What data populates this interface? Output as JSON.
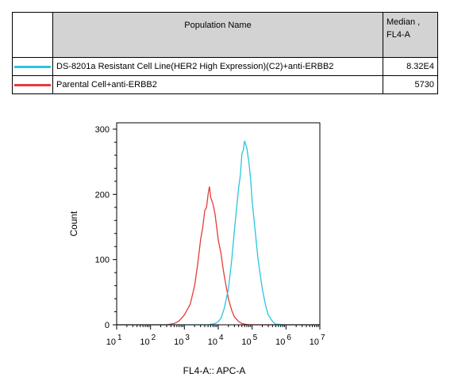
{
  "legend": {
    "header_name": "Population Name",
    "header_median_line1": "Median ,",
    "header_median_line2": "FL4-A",
    "rows": [
      {
        "name": "DS-8201a Resistant Cell Line(HER2 High Expression)(C2)+anti-ERBB2",
        "median": "8.32E4",
        "color": "#29c5e0"
      },
      {
        "name": "Parental Cell+anti-ERBB2",
        "median": "5730",
        "color": "#e53b3b"
      }
    ]
  },
  "chart_data": {
    "type": "line",
    "xlabel": "FL4-A:: APC-A",
    "ylabel": "Count",
    "xscale": "log",
    "xlim": [
      10,
      10000000
    ],
    "ylim": [
      0,
      300
    ],
    "yticks": [
      0,
      100,
      200,
      300
    ],
    "xticks": [
      {
        "base": "10",
        "exp": "1"
      },
      {
        "base": "10",
        "exp": "2"
      },
      {
        "base": "10",
        "exp": "3"
      },
      {
        "base": "10",
        "exp": "4"
      },
      {
        "base": "10",
        "exp": "5"
      },
      {
        "base": "10",
        "exp": "6"
      },
      {
        "base": "10",
        "exp": "7"
      }
    ],
    "series": [
      {
        "name": "Parental Cell+anti-ERBB2",
        "color": "#e53b3b",
        "x": [
          10,
          300,
          500,
          700,
          1000,
          1500,
          2000,
          2500,
          3000,
          3500,
          4000,
          4500,
          5000,
          5500,
          6000,
          6500,
          7000,
          8000,
          9000,
          10000,
          12000,
          14000,
          17000,
          20000,
          25000,
          30000,
          40000,
          50000,
          60000,
          80000,
          100000,
          1000000,
          10000000
        ],
        "y": [
          0,
          0,
          2,
          6,
          15,
          32,
          60,
          95,
          130,
          150,
          175,
          180,
          200,
          212,
          195,
          190,
          185,
          170,
          150,
          130,
          110,
          85,
          60,
          40,
          22,
          12,
          5,
          2,
          1,
          0,
          0,
          0,
          0
        ]
      },
      {
        "name": "DS-8201a Resistant Cell Line(HER2 High Expression)(C2)+anti-ERBB2",
        "color": "#29c5e0",
        "x": [
          10,
          5000,
          8000,
          10000,
          12000,
          15000,
          20000,
          25000,
          30000,
          35000,
          40000,
          45000,
          50000,
          55000,
          60000,
          70000,
          80000,
          90000,
          100000,
          120000,
          150000,
          200000,
          250000,
          300000,
          400000,
          500000,
          1000000,
          10000000
        ],
        "y": [
          0,
          0,
          2,
          5,
          10,
          25,
          55,
          100,
          145,
          180,
          210,
          230,
          262,
          268,
          282,
          270,
          250,
          225,
          190,
          150,
          100,
          55,
          30,
          15,
          5,
          1,
          0,
          0
        ]
      }
    ]
  }
}
